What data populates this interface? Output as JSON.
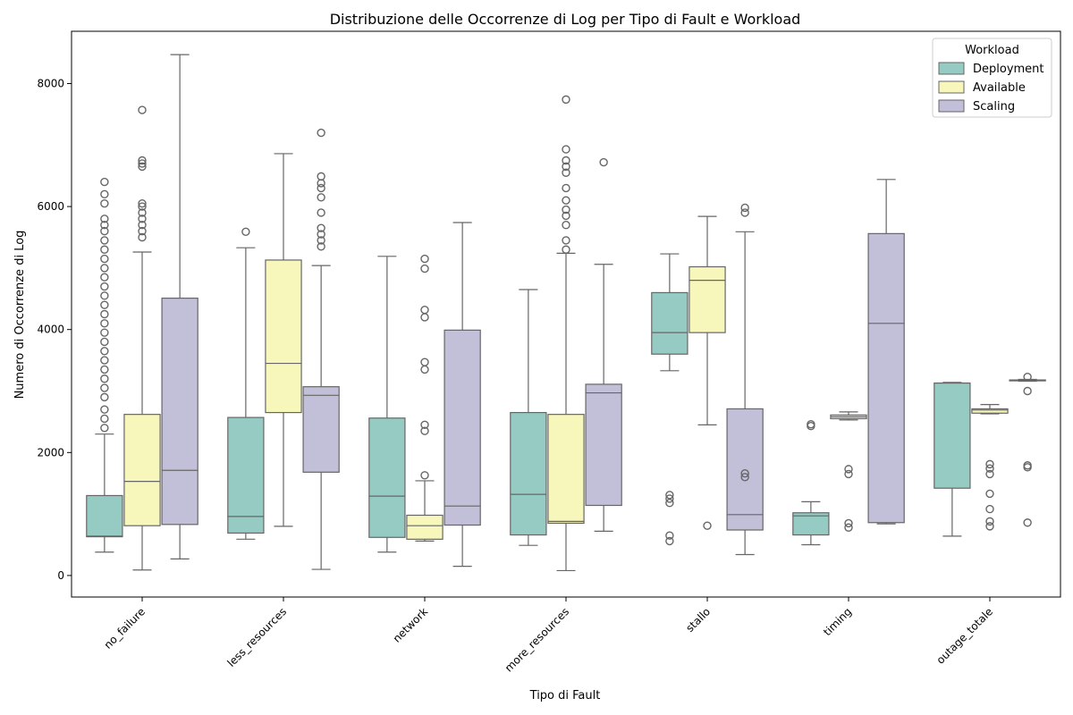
{
  "chart_data": {
    "type": "boxplot",
    "title": "Distribuzione delle Occorrenze di Log per Tipo di Fault e Workload",
    "xlabel": "Tipo di Fault",
    "ylabel": "Numero di Occorrenze di Log",
    "ylim": [
      -350,
      8850
    ],
    "yticks": [
      0,
      2000,
      4000,
      6000,
      8000
    ],
    "categories": [
      "no_failure",
      "less_resources",
      "network",
      "more_resources",
      "stallo",
      "timing",
      "outage_totale"
    ],
    "legend": {
      "title": "Workload",
      "position": "top-right"
    },
    "series": [
      {
        "name": "Deployment",
        "color": "#95cbc3",
        "boxes": [
          {
            "whislo": 380,
            "q1": 630,
            "med": 640,
            "q3": 1300,
            "whishi": 2300,
            "fliers": [
              2400,
              2550,
              2700,
              2900,
              3050,
              3200,
              3350,
              3500,
              3650,
              3800,
              3950,
              4100,
              4250,
              4400,
              4550,
              4700,
              4850,
              5000,
              5150,
              5300,
              5450,
              5600,
              5700,
              5800,
              6050,
              6200,
              6400
            ]
          },
          {
            "whislo": 590,
            "q1": 690,
            "med": 960,
            "q3": 2570,
            "whishi": 5330,
            "fliers": [
              5590
            ]
          },
          {
            "whislo": 380,
            "q1": 620,
            "med": 1290,
            "q3": 2560,
            "whishi": 5190,
            "fliers": []
          },
          {
            "whislo": 490,
            "q1": 660,
            "med": 1320,
            "q3": 2650,
            "whishi": 4650,
            "fliers": []
          },
          {
            "whislo": 3330,
            "q1": 3600,
            "med": 3950,
            "q3": 4600,
            "whishi": 5230,
            "fliers": [
              560,
              650,
              1180,
              1250,
              1310
            ]
          },
          {
            "whislo": 500,
            "q1": 660,
            "med": 970,
            "q3": 1020,
            "whishi": 1200,
            "fliers": [
              2430,
              2460
            ]
          },
          {
            "whislo": 640,
            "q1": 1420,
            "med": 3130,
            "q3": 3130,
            "whishi": 3140,
            "fliers": []
          }
        ]
      },
      {
        "name": "Available",
        "color": "#f8f7bb",
        "boxes": [
          {
            "whislo": 90,
            "q1": 810,
            "med": 1530,
            "q3": 2620,
            "whishi": 5260,
            "fliers": [
              5500,
              5600,
              5700,
              5800,
              5900,
              6000,
              6050,
              6650,
              6700,
              6750,
              7570
            ]
          },
          {
            "whislo": 800,
            "q1": 2650,
            "med": 3450,
            "q3": 5130,
            "whishi": 6860,
            "fliers": []
          },
          {
            "whislo": 560,
            "q1": 590,
            "med": 810,
            "q3": 980,
            "whishi": 1540,
            "fliers": [
              1630,
              2350,
              2450,
              3350,
              3470,
              4200,
              4320,
              4990,
              5150
            ]
          },
          {
            "whislo": 80,
            "q1": 850,
            "med": 880,
            "q3": 2620,
            "whishi": 5240,
            "fliers": [
              5300,
              5450,
              5700,
              5850,
              5950,
              6100,
              6300,
              6550,
              6650,
              6750,
              6930,
              7740
            ]
          },
          {
            "whislo": 2450,
            "q1": 3950,
            "med": 4800,
            "q3": 5020,
            "whishi": 5840,
            "fliers": [
              810
            ]
          },
          {
            "whislo": 2530,
            "q1": 2550,
            "med": 2580,
            "q3": 2610,
            "whishi": 2660,
            "fliers": [
              780,
              850,
              1650,
              1730
            ]
          },
          {
            "whislo": 2630,
            "q1": 2640,
            "med": 2690,
            "q3": 2710,
            "whishi": 2780,
            "fliers": [
              800,
              880,
              1080,
              1330,
              1650,
              1740,
              1810
            ]
          }
        ]
      },
      {
        "name": "Scaling",
        "color": "#c2bfd9",
        "boxes": [
          {
            "whislo": 270,
            "q1": 830,
            "med": 1710,
            "q3": 4510,
            "whishi": 8470,
            "fliers": []
          },
          {
            "whislo": 100,
            "q1": 1680,
            "med": 2930,
            "q3": 3070,
            "whishi": 5040,
            "fliers": [
              5350,
              5450,
              5550,
              5650,
              5900,
              6150,
              6300,
              6380,
              6490,
              7200
            ]
          },
          {
            "whislo": 150,
            "q1": 820,
            "med": 1130,
            "q3": 3990,
            "whishi": 5740,
            "fliers": []
          },
          {
            "whislo": 720,
            "q1": 1140,
            "med": 2970,
            "q3": 3110,
            "whishi": 5060,
            "fliers": [
              6720
            ]
          },
          {
            "whislo": 340,
            "q1": 740,
            "med": 990,
            "q3": 2710,
            "whishi": 5590,
            "fliers": [
              1600,
              1660,
              5900,
              5980
            ]
          },
          {
            "whislo": 840,
            "q1": 860,
            "med": 4100,
            "q3": 5560,
            "whishi": 6440,
            "fliers": []
          },
          {
            "whislo": 3160,
            "q1": 3170,
            "med": 3180,
            "q3": 3180,
            "whishi": 3190,
            "fliers": [
              860,
              1760,
              1790,
              3000,
              3230
            ]
          }
        ]
      }
    ]
  }
}
